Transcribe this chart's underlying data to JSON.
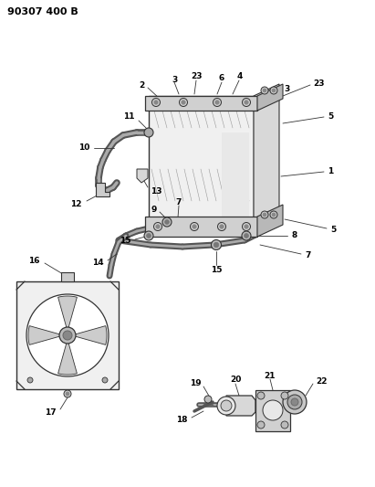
{
  "title": "90307 400 B",
  "bg_color": "#ffffff",
  "lc": "#333333",
  "figsize": [
    4.11,
    5.33
  ],
  "dpi": 100,
  "title_fs": 8,
  "label_fs": 6.5
}
